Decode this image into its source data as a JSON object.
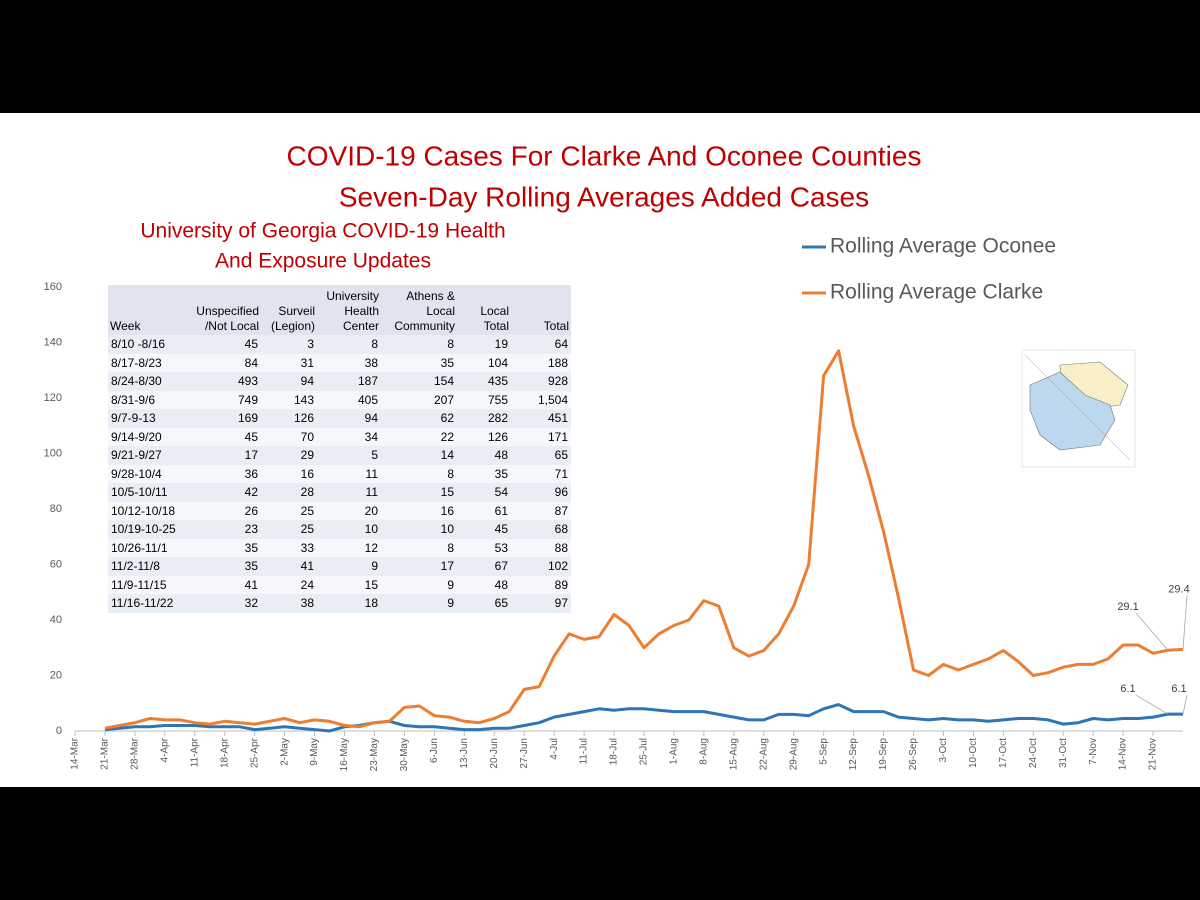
{
  "chart_data": {
    "type": "line",
    "title": [
      "COVID-19 Cases For Clarke And Oconee Counties",
      "Seven-Day Rolling Averages Added Cases"
    ],
    "categories": [
      "14-Mar",
      null,
      "21-Mar",
      null,
      "28-Mar",
      null,
      "4-Apr",
      null,
      "11-Apr",
      null,
      "18-Apr",
      null,
      "25-Apr",
      null,
      "2-May",
      null,
      "9-May",
      null,
      "16-May",
      null,
      "23-May",
      null,
      "30-May",
      null,
      "6-Jun",
      null,
      "13-Jun",
      null,
      "20-Jun",
      null,
      "27-Jun",
      null,
      "4-Jul",
      null,
      "11-Jul",
      null,
      "18-Jul",
      null,
      "25-Jul",
      null,
      "1-Aug",
      null,
      "8-Aug",
      null,
      "15-Aug",
      null,
      "22-Aug",
      null,
      "29-Aug",
      null,
      "5-Sep",
      null,
      "12-Sep",
      null,
      "19-Sep",
      null,
      "26-Sep",
      null,
      "3-Oct",
      null,
      "10-Oct",
      null,
      "17-Oct",
      null,
      "24-Oct",
      null,
      "31-Oct",
      null,
      "7-Nov",
      null,
      "14-Nov",
      null,
      "21-Nov",
      null,
      null
    ],
    "series": [
      {
        "name": "Rolling Average Oconee",
        "color": "#2e75b6",
        "values": [
          null,
          null,
          0.5,
          1,
          1.5,
          1.5,
          2,
          2,
          2,
          1.5,
          1.5,
          1.5,
          0.5,
          1,
          1.5,
          1,
          0.5,
          0,
          1.5,
          2,
          3,
          3.5,
          2,
          1.5,
          1.5,
          1,
          0.5,
          0.5,
          1,
          1,
          2,
          3,
          5,
          6,
          7,
          8,
          7.5,
          8,
          8,
          7.5,
          7,
          7,
          7,
          6,
          5,
          4,
          4,
          6,
          6,
          5.5,
          8,
          9.5,
          7,
          7,
          7,
          5,
          4.5,
          4,
          4.5,
          4,
          4,
          3.5,
          4,
          4.5,
          4.5,
          4,
          2.5,
          3,
          4.5,
          4,
          4.5,
          4.5,
          5,
          6.1,
          6.1
        ]
      },
      {
        "name": "Rolling Average Clarke",
        "color": "#ed7d31",
        "values": [
          null,
          null,
          1,
          2,
          3,
          4.5,
          4,
          4,
          3,
          2.5,
          3.5,
          3,
          2.5,
          3.5,
          4.5,
          3,
          4,
          3.5,
          2,
          1.5,
          3,
          3.5,
          8.5,
          9,
          5.5,
          5,
          3.5,
          3,
          4.5,
          7,
          15,
          16,
          27,
          35,
          33,
          34,
          42,
          38,
          30,
          35,
          38,
          40,
          47,
          45,
          30,
          27,
          29,
          35,
          45,
          60,
          128,
          137,
          110,
          92,
          72,
          48,
          22,
          20,
          24,
          22,
          24,
          26,
          29,
          25,
          20,
          21,
          23,
          24,
          24,
          26,
          31,
          31,
          28,
          29.1,
          29.4
        ]
      }
    ],
    "ylim": [
      0,
      160
    ],
    "yticks": [
      0,
      20,
      40,
      60,
      80,
      100,
      120,
      140,
      160
    ],
    "grid": false
  },
  "table": {
    "title": [
      "University of Georgia COVID-19 Health",
      "And Exposure Updates"
    ],
    "header": [
      "Week",
      "Unspecified /Not Local",
      "Surveil (Legion)",
      "University Health Center",
      "Athens & Local Community",
      "Local Total",
      "Total"
    ],
    "rows": [
      [
        "8/10 -8/16",
        45,
        3,
        8,
        8,
        19,
        64
      ],
      [
        "8/17-8/23",
        84,
        31,
        38,
        35,
        104,
        188
      ],
      [
        "8/24-8/30",
        493,
        94,
        187,
        154,
        435,
        928
      ],
      [
        "8/31-9/6",
        749,
        143,
        405,
        207,
        755,
        "1,504"
      ],
      [
        "9/7-9-13",
        169,
        126,
        94,
        62,
        282,
        451
      ],
      [
        "9/14-9/20",
        45,
        70,
        34,
        22,
        126,
        171
      ],
      [
        "9/21-9/27",
        17,
        29,
        5,
        14,
        48,
        65
      ],
      [
        "9/28-10/4",
        36,
        16,
        11,
        8,
        35,
        71
      ],
      [
        "10/5-10/11",
        42,
        28,
        11,
        15,
        54,
        96
      ],
      [
        "10/12-10/18",
        26,
        25,
        20,
        16,
        61,
        87
      ],
      [
        "10/19-10-25",
        23,
        25,
        10,
        10,
        45,
        68
      ],
      [
        "10/26-11/1",
        35,
        33,
        12,
        8,
        53,
        88
      ],
      [
        "11/2-11/8",
        35,
        41,
        9,
        17,
        67,
        102
      ],
      [
        "11/9-11/15",
        41,
        24,
        15,
        9,
        48,
        89
      ],
      [
        "11/16-11/22",
        32,
        38,
        18,
        9,
        65,
        97
      ]
    ]
  }
}
